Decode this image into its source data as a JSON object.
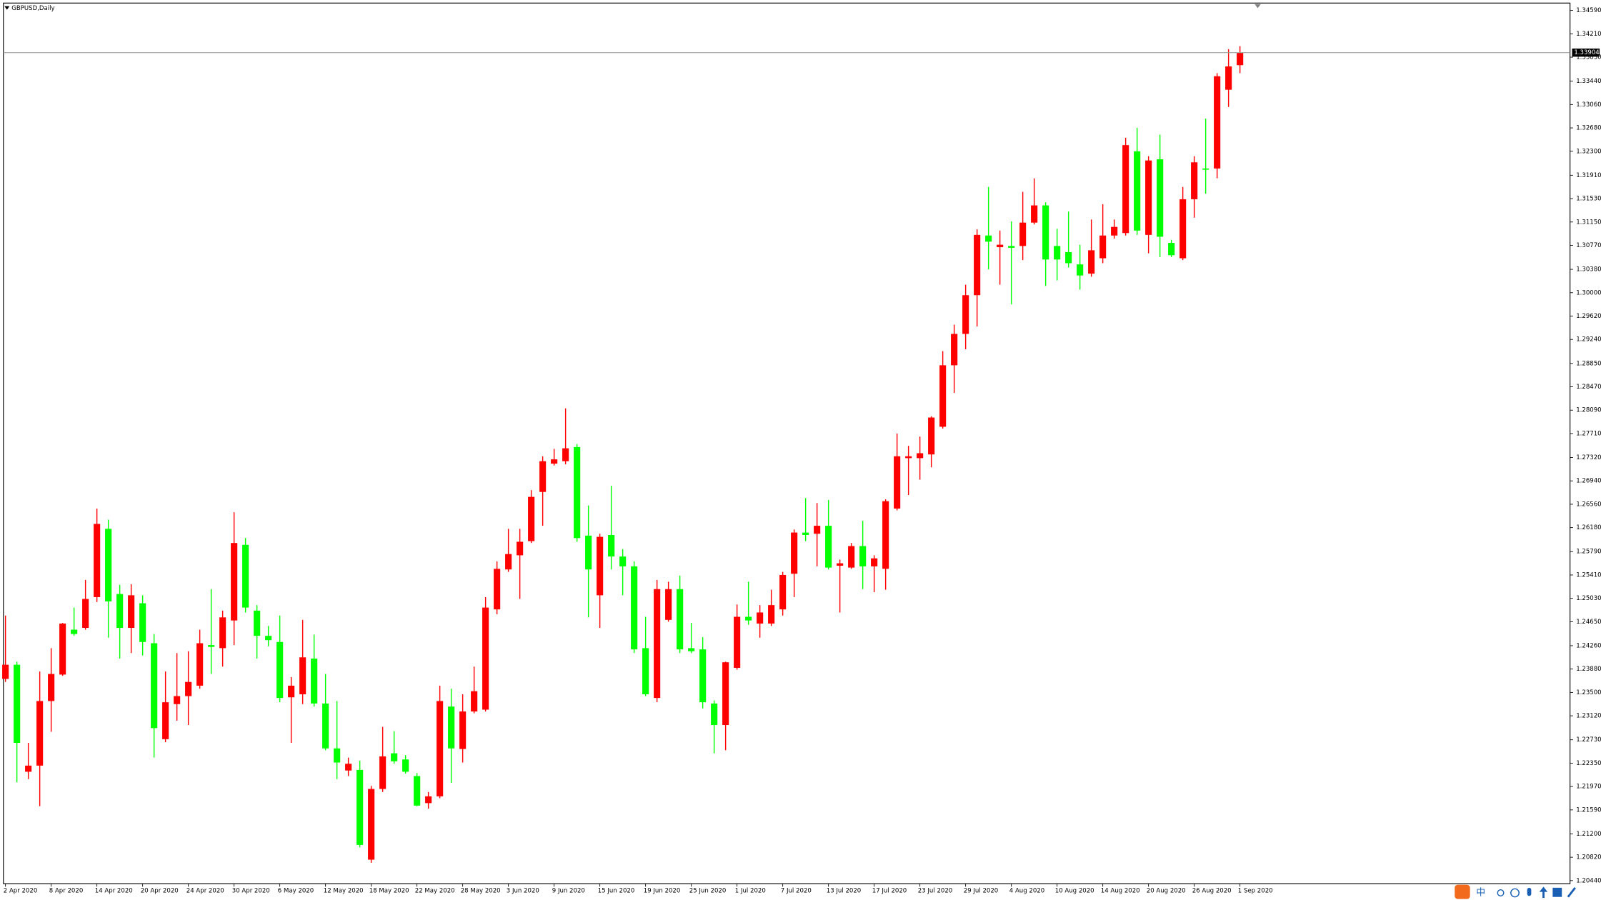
{
  "chart_data": {
    "type": "candlestick",
    "title": "GBPUSD,Daily",
    "up_color": "#ff0000",
    "down_color": "#00ff00",
    "categories": [
      "2 Apr 2020",
      null,
      null,
      null,
      "8 Apr 2020",
      null,
      null,
      null,
      "14 Apr 2020",
      null,
      null,
      null,
      "20 Apr 2020",
      null,
      null,
      null,
      "24 Apr 2020",
      null,
      null,
      null,
      "30 Apr 2020",
      null,
      null,
      null,
      "6 May 2020",
      null,
      null,
      null,
      "12 May 2020",
      null,
      null,
      null,
      "18 May 2020",
      null,
      null,
      null,
      "22 May 2020",
      null,
      null,
      null,
      "28 May 2020",
      null,
      null,
      null,
      "3 Jun 2020",
      null,
      null,
      null,
      "9 Jun 2020",
      null,
      null,
      null,
      "15 Jun 2020",
      null,
      null,
      null,
      "19 Jun 2020",
      null,
      null,
      null,
      "25 Jun 2020",
      null,
      null,
      null,
      "1 Jul 2020",
      null,
      null,
      null,
      "7 Jul 2020",
      null,
      null,
      null,
      "13 Jul 2020",
      null,
      null,
      null,
      "17 Jul 2020",
      null,
      null,
      null,
      "23 Jul 2020",
      null,
      null,
      null,
      "29 Jul 2020",
      null,
      null,
      null,
      "4 Aug 2020",
      null,
      null,
      null,
      "10 Aug 2020",
      null,
      null,
      null,
      "14 Aug 2020",
      null,
      null,
      null,
      "20 Aug 2020",
      null,
      null,
      null,
      "26 Aug 2020",
      null,
      null,
      null,
      "1 Sep 2020"
    ],
    "open": [
      1.2372,
      1.2395,
      1.2221,
      1.2231,
      1.2336,
      1.2379,
      1.2452,
      1.2455,
      1.2505,
      1.2616,
      1.251,
      1.2455,
      1.2495,
      1.243,
      1.2274,
      1.2331,
      1.2344,
      1.2361,
      1.2427,
      1.2422,
      1.2467,
      1.259,
      1.2483,
      1.2442,
      1.2432,
      1.2342,
      1.2347,
      1.2405,
      1.2332,
      1.2259,
      1.2223,
      1.2224,
      1.2078,
      1.2193,
      1.2251,
      1.2241,
      1.2214,
      1.217,
      1.2181,
      1.2327,
      1.2258,
      1.2319,
      1.2322,
      1.2485,
      1.255,
      1.2573,
      1.2596,
      1.2676,
      1.2722,
      1.2726,
      1.2749,
      1.2605,
      1.2508,
      1.2606,
      1.2571,
      1.2555,
      1.2422,
      1.2341,
      1.2468,
      1.2518,
      1.2422,
      1.242,
      1.2332,
      1.2297,
      1.239,
      1.2473,
      1.2462,
      1.2462,
      1.2485,
      1.2543,
      1.261,
      1.2608,
      1.2621,
      1.2556,
      1.2553,
      1.2588,
      1.2555,
      1.2551,
      1.2649,
      1.2731,
      1.2731,
      1.2737,
      1.2782,
      1.2882,
      1.2933,
      1.2996,
      1.3093,
      1.3074,
      1.3076,
      1.3076,
      1.3114,
      1.3142,
      1.3076,
      1.3066,
      1.3046,
      1.3031,
      1.3056,
      1.3093,
      1.3097,
      1.323,
      1.3094,
      1.3217,
      1.3081,
      1.3056,
      1.3152,
      1.3202,
      1.3202,
      1.333,
      1.337
    ],
    "high": [
      1.2475,
      1.24,
      1.2268,
      1.2384,
      1.2422,
      1.2463,
      1.2488,
      1.2533,
      1.2649,
      1.2631,
      1.2525,
      1.2526,
      1.2508,
      1.2445,
      1.2384,
      1.2414,
      1.2417,
      1.2452,
      1.2518,
      1.2483,
      1.2643,
      1.2601,
      1.2492,
      1.2458,
      1.2475,
      1.2375,
      1.2468,
      1.2444,
      1.238,
      1.2336,
      1.2244,
      1.2239,
      1.2198,
      1.2294,
      1.2287,
      1.2248,
      1.2219,
      1.2188,
      1.2361,
      1.2356,
      1.2347,
      1.2392,
      1.2505,
      1.2563,
      1.2616,
      1.2616,
      1.2679,
      1.2734,
      1.2746,
      1.2812,
      1.2754,
      1.2654,
      1.2608,
      1.2686,
      1.2583,
      1.2563,
      1.2473,
      1.2533,
      1.253,
      1.254,
      1.2463,
      1.244,
      1.2337,
      1.24,
      1.2493,
      1.253,
      1.2492,
      1.2517,
      1.2546,
      1.2615,
      1.2666,
      1.2658,
      1.2663,
      1.2566,
      1.2593,
      1.2629,
      1.2573,
      1.2664,
      1.2771,
      1.2751,
      1.2766,
      1.2799,
      1.2905,
      1.2948,
      1.3013,
      1.3103,
      1.3172,
      1.3101,
      1.3116,
      1.3164,
      1.3186,
      1.3147,
      1.3104,
      1.3132,
      1.3078,
      1.3119,
      1.3144,
      1.3119,
      1.3252,
      1.3268,
      1.3222,
      1.3257,
      1.3086,
      1.3172,
      1.3222,
      1.3283,
      1.3357,
      1.3396,
      1.3401
    ],
    "low": [
      1.2367,
      1.2204,
      1.2209,
      1.2165,
      1.2286,
      1.2377,
      1.2442,
      1.2452,
      1.2497,
      1.2439,
      1.2405,
      1.2414,
      1.241,
      1.2244,
      1.2269,
      1.2304,
      1.2297,
      1.2356,
      1.238,
      1.2392,
      1.2427,
      1.248,
      1.2405,
      1.2425,
      1.2334,
      1.2268,
      1.2331,
      1.2327,
      1.2256,
      1.2209,
      1.2214,
      1.2098,
      1.2073,
      1.2188,
      1.2234,
      1.2218,
      1.2165,
      1.2161,
      1.2178,
      1.2203,
      1.2236,
      1.2316,
      1.2319,
      1.2477,
      1.2546,
      1.2502,
      1.2593,
      1.2621,
      1.2719,
      1.2721,
      1.2595,
      1.2472,
      1.2455,
      1.255,
      1.2508,
      1.2414,
      1.2344,
      1.2334,
      1.2465,
      1.2414,
      1.2414,
      1.2324,
      1.2251,
      1.2256,
      1.2387,
      1.246,
      1.2439,
      1.2458,
      1.2475,
      1.2505,
      1.2596,
      1.2555,
      1.255,
      1.248,
      1.2551,
      1.2518,
      1.2513,
      1.2517,
      1.2646,
      1.2671,
      1.2696,
      1.2716,
      1.2779,
      1.2837,
      1.2908,
      1.2945,
      1.3038,
      1.3013,
      1.2981,
      1.3053,
      1.3111,
      1.3011,
      1.302,
      1.3041,
      1.3005,
      1.3026,
      1.3048,
      1.3088,
      1.3093,
      1.3094,
      1.3064,
      1.3058,
      1.3058,
      1.3053,
      1.3122,
      1.3161,
      1.3186,
      1.3302,
      1.3357
    ],
    "close": [
      1.2395,
      1.2268,
      1.2231,
      1.2336,
      1.238,
      1.2462,
      1.2445,
      1.2502,
      1.2624,
      1.2498,
      1.2455,
      1.2508,
      1.2432,
      1.2292,
      1.2334,
      1.2344,
      1.2367,
      1.243,
      1.2424,
      1.2472,
      1.2593,
      1.2488,
      1.2442,
      1.2435,
      1.2341,
      1.2361,
      1.2407,
      1.2332,
      1.2259,
      1.2236,
      1.2234,
      1.2102,
      1.2193,
      1.2246,
      1.2238,
      1.2221,
      1.2166,
      1.2181,
      1.2336,
      1.2259,
      1.2319,
      1.2352,
      1.2488,
      1.2551,
      1.2575,
      1.2595,
      1.2668,
      1.2726,
      1.2729,
      1.2747,
      1.2601,
      1.255,
      1.2603,
      1.2571,
      1.2555,
      1.242,
      1.2347,
      1.2518,
      1.2518,
      1.242,
      1.2417,
      1.2334,
      1.2297,
      1.2399,
      1.2473,
      1.2467,
      1.248,
      1.2492,
      1.2541,
      1.261,
      1.2606,
      1.2621,
      1.2553,
      1.256,
      1.2588,
      1.2555,
      1.2568,
      1.2661,
      1.2734,
      1.2734,
      1.2739,
      1.2797,
      1.2882,
      1.2933,
      1.2996,
      1.3094,
      1.3083,
      1.3078,
      1.3073,
      1.3114,
      1.3142,
      1.3054,
      1.3054,
      1.3048,
      1.3028,
      1.3069,
      1.3093,
      1.3107,
      1.324,
      1.3101,
      1.3215,
      1.3091,
      1.3061,
      1.3152,
      1.3212,
      1.32,
      1.3352,
      1.3368,
      1.339
    ],
    "ylim": [
      1.2039,
      1.3471
    ],
    "yticks": [
      {
        "value": 1.3459,
        "label": "1.34590"
      },
      {
        "value": 1.3421,
        "label": "1.34210"
      },
      {
        "value": 1.3383,
        "label": "1.33830"
      },
      {
        "value": 1.3344,
        "label": "1.33440"
      },
      {
        "value": 1.3306,
        "label": "1.33060"
      },
      {
        "value": 1.3268,
        "label": "1.32680"
      },
      {
        "value": 1.323,
        "label": "1.32300"
      },
      {
        "value": 1.3191,
        "label": "1.31910"
      },
      {
        "value": 1.3153,
        "label": "1.31530"
      },
      {
        "value": 1.3115,
        "label": "1.31150"
      },
      {
        "value": 1.3077,
        "label": "1.30770"
      },
      {
        "value": 1.3038,
        "label": "1.30380"
      },
      {
        "value": 1.3,
        "label": "1.30000"
      },
      {
        "value": 1.2962,
        "label": "1.29620"
      },
      {
        "value": 1.2924,
        "label": "1.29240"
      },
      {
        "value": 1.2885,
        "label": "1.28850"
      },
      {
        "value": 1.2847,
        "label": "1.28470"
      },
      {
        "value": 1.2809,
        "label": "1.28090"
      },
      {
        "value": 1.2771,
        "label": "1.27710"
      },
      {
        "value": 1.2732,
        "label": "1.27320"
      },
      {
        "value": 1.2694,
        "label": "1.26940"
      },
      {
        "value": 1.2656,
        "label": "1.26560"
      },
      {
        "value": 1.2618,
        "label": "1.26180"
      },
      {
        "value": 1.2579,
        "label": "1.25790"
      },
      {
        "value": 1.2541,
        "label": "1.25410"
      },
      {
        "value": 1.2503,
        "label": "1.25030"
      },
      {
        "value": 1.2465,
        "label": "1.24650"
      },
      {
        "value": 1.2426,
        "label": "1.24260"
      },
      {
        "value": 1.2388,
        "label": "1.23880"
      },
      {
        "value": 1.235,
        "label": "1.23500"
      },
      {
        "value": 1.2312,
        "label": "1.23120"
      },
      {
        "value": 1.2273,
        "label": "1.22730"
      },
      {
        "value": 1.2235,
        "label": "1.22350"
      },
      {
        "value": 1.2197,
        "label": "1.21970"
      },
      {
        "value": 1.2159,
        "label": "1.21590"
      },
      {
        "value": 1.212,
        "label": "1.21200"
      },
      {
        "value": 1.2082,
        "label": "1.20820"
      },
      {
        "value": 1.2044,
        "label": "1.20440"
      }
    ],
    "grid": false,
    "current_price": {
      "value": 1.33904,
      "label": "1.33904"
    }
  },
  "taskbar": {
    "ime": "中"
  }
}
